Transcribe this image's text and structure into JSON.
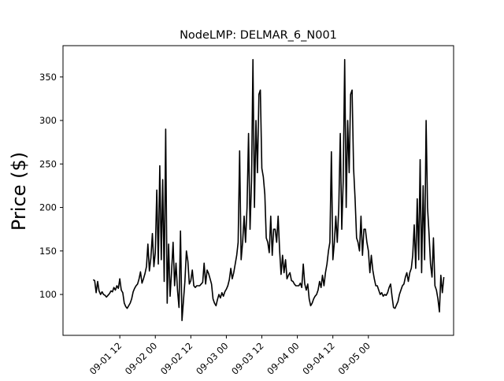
{
  "chart_data": {
    "type": "line",
    "title": "NodeLMP: DELMAR_6_N001",
    "xlabel": "",
    "ylabel": "Price ($)",
    "x_unit": "hours since 09-01 00",
    "xlim": [
      -7.2,
      124.8
    ],
    "ylim": [
      53,
      386
    ],
    "grid": false,
    "yticks": [
      100,
      150,
      200,
      250,
      300,
      350
    ],
    "xticks": [
      {
        "at": 12,
        "label": "09-01 12"
      },
      {
        "at": 24,
        "label": "09-02 00"
      },
      {
        "at": 36,
        "label": "09-02 12"
      },
      {
        "at": 48,
        "label": "09-03 00"
      },
      {
        "at": 60,
        "label": "09-03 12"
      },
      {
        "at": 72,
        "label": "09-04 00"
      },
      {
        "at": 84,
        "label": "09-04 12"
      },
      {
        "at": 96,
        "label": "09-05 00"
      }
    ],
    "series": [
      {
        "name": "",
        "color": "#000000",
        "points": [
          [
            3.0,
            117
          ],
          [
            3.5,
            116
          ],
          [
            4.0,
            102
          ],
          [
            4.5,
            115
          ],
          [
            5.0,
            104
          ],
          [
            5.5,
            100
          ],
          [
            6.0,
            103
          ],
          [
            6.5,
            100
          ],
          [
            7.0,
            99
          ],
          [
            7.5,
            97
          ],
          [
            8.0,
            99
          ],
          [
            8.5,
            101
          ],
          [
            9.0,
            104
          ],
          [
            9.5,
            103
          ],
          [
            10.0,
            108
          ],
          [
            10.5,
            105
          ],
          [
            11.0,
            110
          ],
          [
            11.5,
            107
          ],
          [
            12.0,
            118
          ],
          [
            12.5,
            105
          ],
          [
            13.0,
            102
          ],
          [
            13.5,
            90
          ],
          [
            14.0,
            86
          ],
          [
            14.5,
            84
          ],
          [
            15.0,
            87
          ],
          [
            15.5,
            90
          ],
          [
            16.0,
            95
          ],
          [
            16.5,
            103
          ],
          [
            17.0,
            107
          ],
          [
            17.5,
            110
          ],
          [
            18.0,
            112
          ],
          [
            18.5,
            118
          ],
          [
            19.0,
            126
          ],
          [
            19.5,
            113
          ],
          [
            20.0,
            118
          ],
          [
            20.5,
            124
          ],
          [
            21.0,
            132
          ],
          [
            21.5,
            158
          ],
          [
            22.0,
            127
          ],
          [
            22.5,
            142
          ],
          [
            23.0,
            170
          ],
          [
            23.5,
            132
          ],
          [
            24.0,
            148
          ],
          [
            24.5,
            220
          ],
          [
            25.0,
            135
          ],
          [
            25.5,
            248
          ],
          [
            26.0,
            140
          ],
          [
            26.5,
            232
          ],
          [
            27.0,
            115
          ],
          [
            27.5,
            290
          ],
          [
            28.0,
            90
          ],
          [
            28.5,
            158
          ],
          [
            29.0,
            98
          ],
          [
            29.5,
            127
          ],
          [
            30.0,
            160
          ],
          [
            30.5,
            110
          ],
          [
            31.0,
            136
          ],
          [
            31.5,
            105
          ],
          [
            32.0,
            85
          ],
          [
            32.5,
            173
          ],
          [
            33.0,
            70
          ],
          [
            33.5,
            92
          ],
          [
            34.0,
            115
          ],
          [
            34.5,
            150
          ],
          [
            35.0,
            138
          ],
          [
            35.5,
            112
          ],
          [
            36.0,
            116
          ],
          [
            36.5,
            128
          ],
          [
            37.0,
            110
          ],
          [
            37.5,
            108
          ],
          [
            38.0,
            110
          ],
          [
            38.5,
            110
          ],
          [
            39.0,
            110
          ],
          [
            39.5,
            112
          ],
          [
            40.0,
            114
          ],
          [
            40.5,
            136
          ],
          [
            41.0,
            112
          ],
          [
            41.5,
            128
          ],
          [
            42.0,
            124
          ],
          [
            42.5,
            118
          ],
          [
            43.0,
            112
          ],
          [
            43.5,
            95
          ],
          [
            44.0,
            90
          ],
          [
            44.5,
            87
          ],
          [
            45.0,
            94
          ],
          [
            45.5,
            100
          ],
          [
            46.0,
            96
          ],
          [
            46.5,
            102
          ],
          [
            47.0,
            98
          ],
          [
            47.5,
            103
          ],
          [
            48.0,
            106
          ],
          [
            48.5,
            110
          ],
          [
            49.0,
            117
          ],
          [
            49.5,
            130
          ],
          [
            50.0,
            118
          ],
          [
            50.5,
            125
          ],
          [
            51.0,
            135
          ],
          [
            51.5,
            145
          ],
          [
            52.0,
            160
          ],
          [
            52.5,
            265
          ],
          [
            53.0,
            140
          ],
          [
            53.5,
            160
          ],
          [
            54.0,
            190
          ],
          [
            54.5,
            160
          ],
          [
            55.0,
            200
          ],
          [
            55.5,
            285
          ],
          [
            56.0,
            175
          ],
          [
            56.5,
            230
          ],
          [
            57.0,
            370
          ],
          [
            57.5,
            200
          ],
          [
            58.0,
            300
          ],
          [
            58.5,
            240
          ],
          [
            59.0,
            330
          ],
          [
            59.5,
            335
          ],
          [
            60.0,
            245
          ],
          [
            60.5,
            235
          ],
          [
            61.0,
            215
          ],
          [
            61.5,
            165
          ],
          [
            62.0,
            160
          ],
          [
            62.5,
            148
          ],
          [
            63.0,
            190
          ],
          [
            63.5,
            145
          ],
          [
            64.0,
            175
          ],
          [
            64.5,
            175
          ],
          [
            65.0,
            160
          ],
          [
            65.5,
            190
          ],
          [
            66.0,
            150
          ],
          [
            66.5,
            123
          ],
          [
            67.0,
            145
          ],
          [
            67.5,
            125
          ],
          [
            68.0,
            140
          ],
          [
            68.5,
            118
          ],
          [
            69.0,
            122
          ],
          [
            69.5,
            125
          ],
          [
            70.0,
            116
          ],
          [
            70.5,
            115
          ],
          [
            71.0,
            112
          ],
          [
            71.5,
            110
          ],
          [
            72.0,
            110
          ],
          [
            72.5,
            110
          ],
          [
            73.0,
            113
          ],
          [
            73.5,
            108
          ],
          [
            74.0,
            135
          ],
          [
            74.5,
            112
          ],
          [
            75.0,
            105
          ],
          [
            75.5,
            112
          ],
          [
            76.0,
            95
          ],
          [
            76.5,
            87
          ],
          [
            77.0,
            90
          ],
          [
            77.5,
            95
          ],
          [
            78.0,
            98
          ],
          [
            78.5,
            100
          ],
          [
            79.0,
            105
          ],
          [
            79.5,
            115
          ],
          [
            80.0,
            108
          ],
          [
            80.5,
            122
          ],
          [
            81.0,
            110
          ],
          [
            81.5,
            125
          ],
          [
            82.0,
            135
          ],
          [
            82.5,
            150
          ],
          [
            83.0,
            160
          ],
          [
            83.5,
            264
          ],
          [
            84.0,
            140
          ],
          [
            84.5,
            160
          ],
          [
            85.0,
            190
          ],
          [
            85.5,
            160
          ],
          [
            86.0,
            200
          ],
          [
            86.5,
            285
          ],
          [
            87.0,
            175
          ],
          [
            87.5,
            230
          ],
          [
            88.0,
            370
          ],
          [
            88.5,
            200
          ],
          [
            89.0,
            300
          ],
          [
            89.5,
            240
          ],
          [
            90.0,
            330
          ],
          [
            90.5,
            335
          ],
          [
            91.0,
            245
          ],
          [
            91.5,
            210
          ],
          [
            92.0,
            165
          ],
          [
            92.5,
            160
          ],
          [
            93.0,
            150
          ],
          [
            93.5,
            190
          ],
          [
            94.0,
            145
          ],
          [
            94.5,
            175
          ],
          [
            95.0,
            175
          ],
          [
            95.5,
            160
          ],
          [
            96.0,
            150
          ],
          [
            96.5,
            125
          ],
          [
            97.0,
            145
          ],
          [
            97.5,
            128
          ],
          [
            98.0,
            118
          ],
          [
            98.5,
            110
          ],
          [
            99.0,
            110
          ],
          [
            99.5,
            105
          ],
          [
            100.0,
            100
          ],
          [
            100.5,
            102
          ],
          [
            101.0,
            98
          ],
          [
            101.5,
            100
          ],
          [
            102.0,
            99
          ],
          [
            102.5,
            102
          ],
          [
            103.0,
            108
          ],
          [
            103.5,
            112
          ],
          [
            104.0,
            98
          ],
          [
            104.5,
            85
          ],
          [
            105.0,
            84
          ],
          [
            105.5,
            88
          ],
          [
            106.0,
            92
          ],
          [
            106.5,
            100
          ],
          [
            107.0,
            105
          ],
          [
            107.5,
            110
          ],
          [
            108.0,
            112
          ],
          [
            108.5,
            120
          ],
          [
            109.0,
            125
          ],
          [
            109.5,
            115
          ],
          [
            110.0,
            125
          ],
          [
            110.5,
            130
          ],
          [
            111.0,
            145
          ],
          [
            111.5,
            180
          ],
          [
            112.0,
            130
          ],
          [
            112.5,
            210
          ],
          [
            113.0,
            140
          ],
          [
            113.5,
            255
          ],
          [
            114.0,
            125
          ],
          [
            114.5,
            225
          ],
          [
            115.0,
            140
          ],
          [
            115.5,
            300
          ],
          [
            116.0,
            200
          ],
          [
            116.5,
            170
          ],
          [
            117.0,
            135
          ],
          [
            117.5,
            120
          ],
          [
            118.0,
            165
          ],
          [
            118.5,
            110
          ],
          [
            119.0,
            105
          ],
          [
            119.5,
            95
          ],
          [
            120.0,
            80
          ],
          [
            120.5,
            122
          ],
          [
            121.0,
            102
          ],
          [
            121.5,
            120
          ]
        ]
      }
    ]
  }
}
